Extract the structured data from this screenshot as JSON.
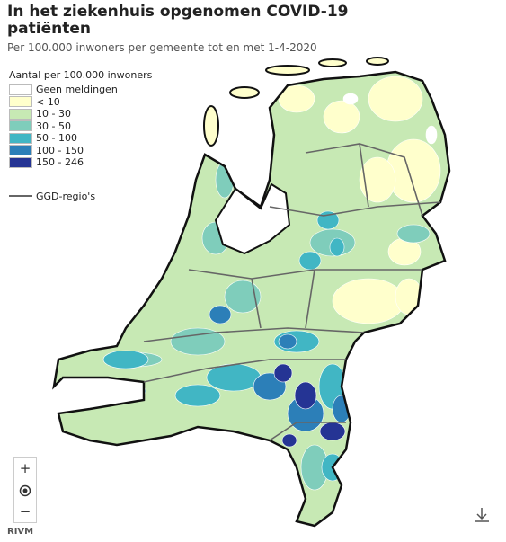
{
  "header": {
    "title": "In het ziekenhuis opgenomen COVID-19 patiënten",
    "subtitle": "Per 100.000 inwoners per gemeente tot en met 1-4-2020"
  },
  "legend": {
    "title": "Aantal per 100.000 inwoners",
    "items": [
      {
        "label": "Geen meldingen",
        "color": "#ffffff"
      },
      {
        "label": "< 10",
        "color": "#ffffcc"
      },
      {
        "label": "10 - 30",
        "color": "#c7e9b4"
      },
      {
        "label": "30 - 50",
        "color": "#7fcdbb"
      },
      {
        "label": "50 - 100",
        "color": "#41b6c4"
      },
      {
        "label": "100 - 150",
        "color": "#2c7fb8"
      },
      {
        "label": "150 - 246",
        "color": "#253494"
      }
    ],
    "boundary": "GGD-regio's"
  },
  "controls": {
    "zoom_in": "+",
    "zoom_out": "−"
  },
  "source": "RIVM"
}
